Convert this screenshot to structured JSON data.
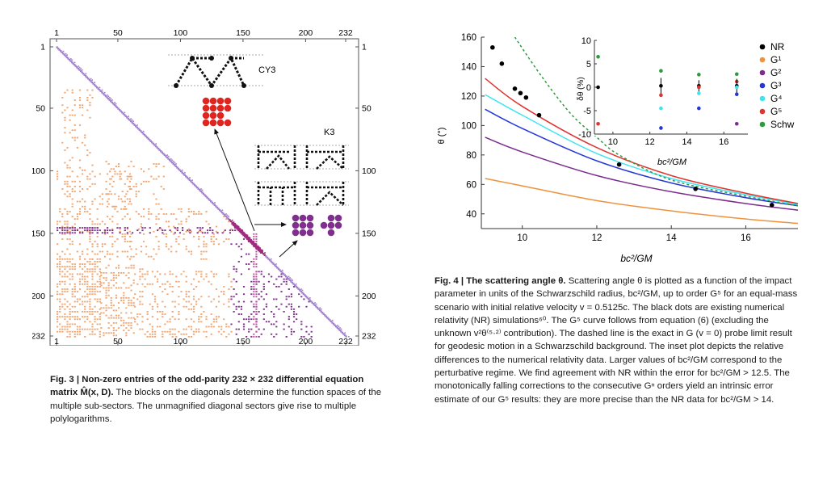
{
  "fig3": {
    "caption_bold": "Fig. 3 | Non-zero entries of the odd-parity 232 × 232 differential equation matrix M̂(x, D).",
    "caption_text": " The blocks on the diagonals determine the function spaces of the multiple sub-sectors. The unmagnified diagonal sectors give rise to multiple polylogarithms.",
    "ticks": [
      "1",
      "50",
      "100",
      "150",
      "200",
      "232"
    ],
    "label_cy3": "CY3",
    "label_k3": "K3",
    "colors": {
      "diag": "#a27fd0",
      "orange": "#f0a672",
      "purple": "#7f2f8c",
      "red": "#e02520"
    }
  },
  "fig4": {
    "caption_bold": "Fig. 4 | The scattering angle θ.",
    "caption_text": " Scattering angle θ is plotted as a function of the impact parameter in units of the Schwarzschild radius, bc²/GM, up to order G⁵ for an equal-mass scenario with initial relative velocity v = 0.5125c. The black dots are existing numerical relativity (NR) simulations⁶⁰. The G⁵ curve follows from equation (6) (excluding the unknown v²θ⁽⁵·²⁾ contribution). The dashed line is the exact in G (v = 0) probe limit result for geodesic motion in a Schwarzschild background. The inset plot depicts the relative differences to the numerical relativity data. Larger values of bc²/GM correspond to the perturbative regime. We find agreement with NR within the error for bc²/GM > 12.5. The monotonically falling corrections to the consecutive Gⁿ orders yield an intrinsic error estimate of our G⁵ results: they are more precise than the NR data for bc²/GM > 14."
  },
  "chart_data": {
    "type": "line",
    "xlabel": "bc²/GM",
    "ylabel": "θ (°)",
    "xlim": [
      8.9,
      17.4
    ],
    "ylim": [
      30,
      160
    ],
    "xticks": [
      10,
      12,
      14,
      16
    ],
    "yticks": [
      40,
      60,
      80,
      100,
      120,
      140,
      160
    ],
    "series": [
      {
        "name": "G¹",
        "color": "#f0913c",
        "dashed": false,
        "x": [
          9,
          10,
          12,
          14,
          16,
          17.4
        ],
        "values": [
          64,
          59,
          49,
          42,
          36.5,
          33.5
        ]
      },
      {
        "name": "G²",
        "color": "#7b2c8e",
        "dashed": false,
        "x": [
          9,
          10,
          12,
          14,
          16,
          17.4
        ],
        "values": [
          92,
          82,
          66,
          55,
          47,
          42.5
        ]
      },
      {
        "name": "G³",
        "color": "#2436d8",
        "dashed": false,
        "x": [
          9,
          10,
          12,
          14,
          16,
          17.4
        ],
        "values": [
          111,
          98,
          76,
          61,
          51,
          45.5
        ]
      },
      {
        "name": "G⁴",
        "color": "#3ee5ef",
        "dashed": false,
        "x": [
          9,
          10,
          12,
          14,
          16,
          17.4
        ],
        "values": [
          121,
          107,
          81,
          64,
          53,
          46.5
        ]
      },
      {
        "name": "G⁵",
        "color": "#e0332f",
        "dashed": false,
        "x": [
          9,
          10,
          12,
          14,
          16,
          17.4
        ],
        "values": [
          132,
          113,
          85,
          66,
          54,
          47
        ]
      },
      {
        "name": "Schw",
        "color": "#2e9a3e",
        "dashed": true,
        "x": [
          9.8,
          10.5,
          11.3,
          12,
          12.6,
          14,
          16,
          17.4
        ],
        "values": [
          160,
          134,
          108,
          92,
          80,
          63,
          52,
          45.5
        ]
      },
      {
        "name": "NR",
        "color": "#000000",
        "points": true,
        "x": [
          9.2,
          9.45,
          9.8,
          9.95,
          10.1,
          10.45,
          12.6,
          14.65,
          16.7
        ],
        "values": [
          153,
          142,
          125,
          122,
          119,
          107,
          73.5,
          57,
          46
        ]
      }
    ],
    "inset": {
      "xlabel": "bc²/GM",
      "ylabel": "δθ (%)",
      "xlim": [
        9,
        17.3
      ],
      "ylim": [
        -10,
        10
      ],
      "xticks": [
        10,
        12,
        14,
        16
      ],
      "yticks": [
        -10,
        -5,
        0,
        5,
        10
      ],
      "points": [
        {
          "series": "Schw",
          "x": 9.2,
          "y": 6.5
        },
        {
          "series": "NR",
          "x": 9.2,
          "y": 0
        },
        {
          "series": "G⁵",
          "x": 9.2,
          "y": -7.8
        },
        {
          "series": "Schw",
          "x": 12.6,
          "y": 3.5
        },
        {
          "series": "NR",
          "x": 12.6,
          "y": 0.3,
          "err": 1.7
        },
        {
          "series": "G⁵",
          "x": 12.6,
          "y": -1.7
        },
        {
          "series": "G⁴",
          "x": 12.6,
          "y": -4.5
        },
        {
          "series": "G³",
          "x": 12.6,
          "y": -8.7
        },
        {
          "series": "Schw",
          "x": 14.65,
          "y": 2.7
        },
        {
          "series": "NR",
          "x": 14.65,
          "y": 0.3,
          "err": 1.2
        },
        {
          "series": "G⁵",
          "x": 14.65,
          "y": 0
        },
        {
          "series": "G⁴",
          "x": 14.65,
          "y": -1.3
        },
        {
          "series": "G³",
          "x": 14.65,
          "y": -4.5
        },
        {
          "series": "Schw",
          "x": 16.7,
          "y": 2.8
        },
        {
          "series": "G⁵",
          "x": 16.7,
          "y": 1.2
        },
        {
          "series": "NR",
          "x": 16.7,
          "y": 0.3,
          "err": 1.5
        },
        {
          "series": "G⁴",
          "x": 16.7,
          "y": 0
        },
        {
          "series": "G³",
          "x": 16.7,
          "y": -1.5
        },
        {
          "series": "G²",
          "x": 16.7,
          "y": -7.8
        }
      ]
    },
    "legend": {
      "placement": "top-right",
      "entries": [
        {
          "label": "NR",
          "color": "#000000"
        },
        {
          "label": "G¹",
          "color": "#f0913c"
        },
        {
          "label": "G²",
          "color": "#7b2c8e"
        },
        {
          "label": "G³",
          "color": "#2436d8"
        },
        {
          "label": "G⁴",
          "color": "#3ee5ef"
        },
        {
          "label": "G⁵",
          "color": "#e0332f"
        },
        {
          "label": "Schw",
          "color": "#2e9a3e"
        }
      ]
    }
  }
}
